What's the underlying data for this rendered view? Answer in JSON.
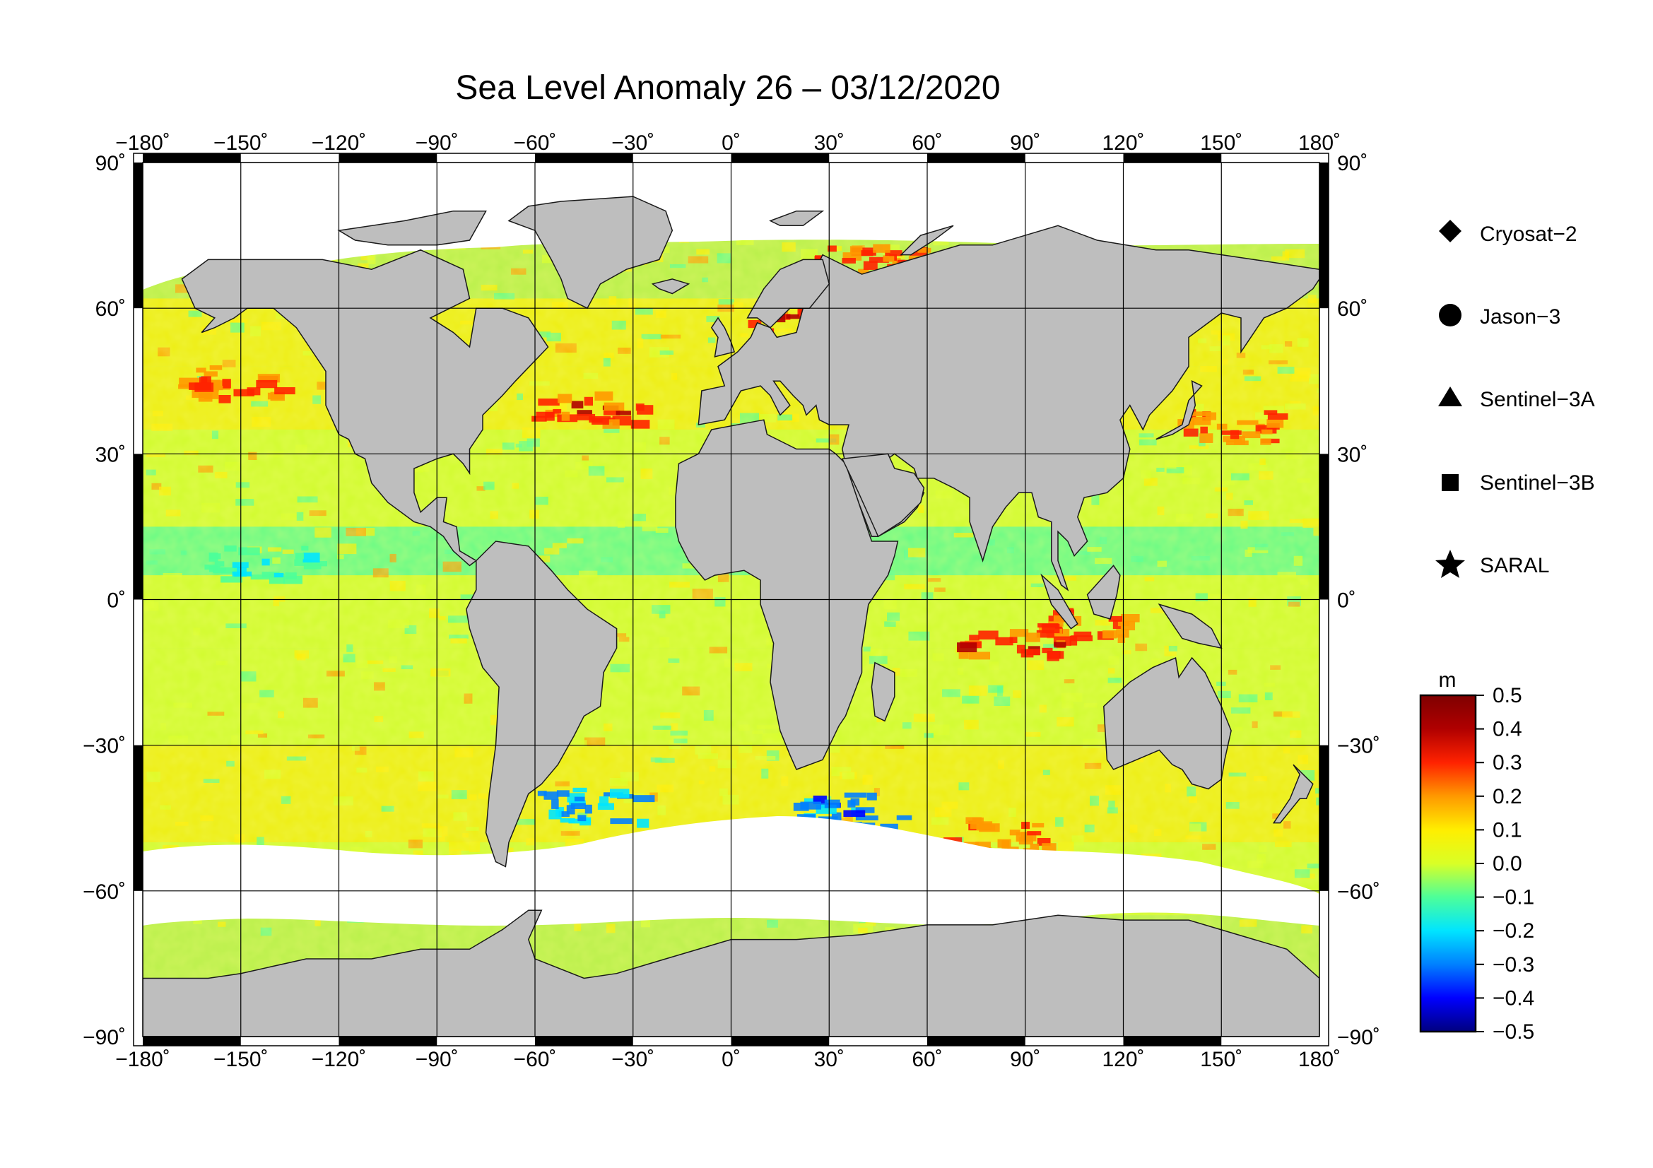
{
  "title": "Sea Level Anomaly 26 – 03/12/2020",
  "map": {
    "projection": "equirectangular",
    "lon_range": [
      -180,
      180
    ],
    "lat_range": [
      -90,
      90
    ],
    "grid_step_deg": 30,
    "land_color": "#bebebe",
    "ice_color": "#ffffff",
    "lon_labels": [
      "−180˚",
      "−150˚",
      "−120˚",
      "−90˚",
      "−60˚",
      "−30˚",
      "0˚",
      "30˚",
      "60˚",
      "90˚",
      "120˚",
      "150˚",
      "180˚"
    ],
    "lat_labels": [
      "90˚",
      "60˚",
      "30˚",
      "0˚",
      "−30˚",
      "−60˚",
      "−90˚"
    ]
  },
  "legend": {
    "items": [
      {
        "label": "Cryosat−2",
        "symbol": "diamond"
      },
      {
        "label": "Jason−3",
        "symbol": "circle"
      },
      {
        "label": "Sentinel−3A",
        "symbol": "triangle"
      },
      {
        "label": "Sentinel−3B",
        "symbol": "square"
      },
      {
        "label": "SARAL",
        "symbol": "star"
      }
    ]
  },
  "colorbar": {
    "unit": "m",
    "min": -0.5,
    "max": 0.5,
    "tick_labels": [
      "0.5",
      "0.4",
      "0.3",
      "0.2",
      "0.1",
      "0.0",
      "−0.1",
      "−0.2",
      "−0.3",
      "−0.4",
      "−0.5"
    ],
    "colors": [
      "#00007f",
      "#0000ff",
      "#0080ff",
      "#00e5ff",
      "#4dff99",
      "#d9ff26",
      "#ffee00",
      "#ff9900",
      "#ff2200",
      "#b00000",
      "#7f0000"
    ]
  },
  "anomaly_features": [
    {
      "name": "north-atlantic-gulf-stream",
      "lon": -45,
      "lat": 40,
      "value": 0.35
    },
    {
      "name": "kuroshio",
      "lon": 150,
      "lat": 36,
      "value": 0.3
    },
    {
      "name": "baltic-sea",
      "lon": 20,
      "lat": 59,
      "value": 0.35
    },
    {
      "name": "barents-sea",
      "lon": 40,
      "lat": 71,
      "value": 0.3
    },
    {
      "name": "indonesian-seas",
      "lon": 110,
      "lat": -5,
      "value": 0.3
    },
    {
      "name": "south-indian-band",
      "lon": 85,
      "lat": -8,
      "value": 0.35
    },
    {
      "name": "tropical-pacific-band",
      "lon": -145,
      "lat": 8,
      "value": -0.15
    },
    {
      "name": "southern-ocean-argentine-basin",
      "lon": -45,
      "lat": -42,
      "value": -0.3
    },
    {
      "name": "southern-ocean-south-africa",
      "lon": 35,
      "lat": -43,
      "value": -0.35
    },
    {
      "name": "north-pacific-gulf-of-alaska",
      "lon": -155,
      "lat": 45,
      "value": 0.3
    },
    {
      "name": "southern-ocean-indian",
      "lon": 80,
      "lat": -48,
      "value": 0.25
    }
  ]
}
